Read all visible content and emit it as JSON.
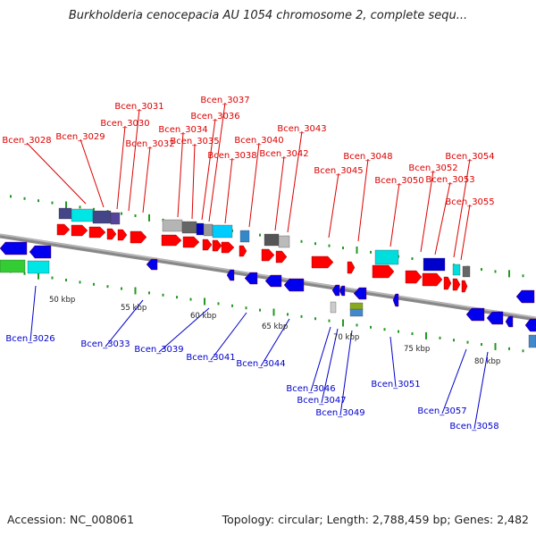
{
  "title": "Burkholderia cenocepacia AU 1054 chromosome 2, complete sequ...",
  "footer": {
    "accession": "Accession: NC_008061",
    "topology": "Topology: circular; Length: 2,788,459 bp; Genes: 2,482"
  },
  "colors": {
    "forward_label": "#dd0000",
    "reverse_label": "#0000cc",
    "forward_gene": "#ff0000",
    "reverse_gene": "#0000ee",
    "tick": "#229922",
    "backbone": "#888888"
  },
  "scale_labels": [
    "50 kbp",
    "55 kbp",
    "60 kbp",
    "65 kbp",
    "70 kbp",
    "75 kbp",
    "80 kbp"
  ],
  "forward_genes": [
    "Bcen_3028",
    "Bcen_3029",
    "Bcen_3030",
    "Bcen_3031",
    "Bcen_3032",
    "Bcen_3034",
    "Bcen_3035",
    "Bcen_3036",
    "Bcen_3037",
    "Bcen_3038",
    "Bcen_3040",
    "Bcen_3042",
    "Bcen_3043",
    "Bcen_3045",
    "Bcen_3048",
    "Bcen_3050",
    "Bcen_3052",
    "Bcen_3053",
    "Bcen_3054",
    "Bcen_3055"
  ],
  "reverse_genes": [
    "Bcen_3026",
    "Bcen_3033",
    "Bcen_3039",
    "Bcen_3041",
    "Bcen_3044",
    "Bcen_3046",
    "Bcen_3047",
    "Bcen_3049",
    "Bcen_3051",
    "Bcen_3057",
    "Bcen_3058"
  ]
}
